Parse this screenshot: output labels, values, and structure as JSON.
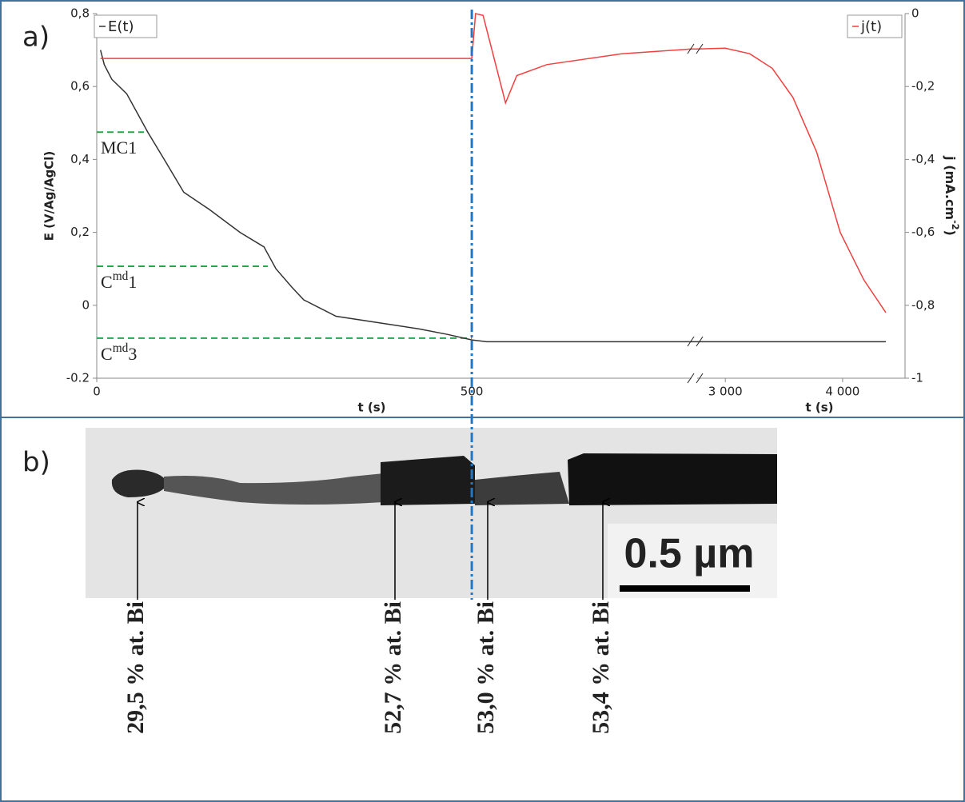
{
  "chart_data": {
    "type": "line",
    "xlabel": "t (s)",
    "ylabel": "E (V/Ag/AgCl)",
    "y2label": {
      "text": "j (mA.cm",
      "sup": "-2",
      "tail": ")"
    },
    "xlim": [
      0,
      4369
    ],
    "xbreak": [
      793,
      2760
    ],
    "xticks": [
      0,
      500,
      {
        "value": 3000,
        "label": "3 000"
      },
      {
        "value": 4000,
        "label": "4 000"
      }
    ],
    "ylim": [
      -0.2,
      0.8
    ],
    "yticks": [
      {
        "value": -0.2,
        "label": "-0.2"
      },
      0,
      {
        "value": 0.2,
        "label": "0,2"
      },
      {
        "value": 0.4,
        "label": "0,4"
      },
      {
        "value": 0.6,
        "label": "0,6"
      },
      {
        "value": 0.8,
        "label": "0,8"
      }
    ],
    "y2lim": [
      -1,
      0
    ],
    "y2ticks": [
      -1,
      {
        "value": -0.8,
        "label": "-0,8"
      },
      {
        "value": -0.6,
        "label": "-0,6"
      },
      {
        "value": -0.4,
        "label": "-0,4"
      },
      {
        "value": -0.2,
        "label": "-0,2"
      },
      0
    ],
    "series": [
      {
        "name": "E(t)",
        "color": "#333333",
        "x": [
          5,
          10,
          20,
          40,
          68,
          90,
          116,
          150,
          191,
          223,
          239,
          260,
          276,
          319,
          383,
          430,
          468,
          500,
          520,
          793,
          2760,
          3000,
          4000,
          4369
        ],
        "values": [
          0.7,
          0.66,
          0.62,
          0.58,
          0.475,
          0.4,
          0.31,
          0.263,
          0.2,
          0.16,
          0.1,
          0.05,
          0.015,
          -0.03,
          -0.05,
          -0.065,
          -0.08,
          -0.095,
          -0.1,
          -0.1,
          -0.1,
          -0.1,
          -0.1,
          -0.1
        ]
      },
      {
        "name": "j(t)",
        "color": "#f04040",
        "axis": "y2",
        "x": [
          5,
          500,
          505,
          515,
          545,
          560,
          600,
          700,
          793,
          2760,
          3000,
          3208,
          3400,
          3577,
          3779,
          3980,
          4181,
          4369
        ],
        "values": [
          -0.123,
          -0.123,
          0,
          -0.005,
          -0.245,
          -0.17,
          -0.14,
          -0.11,
          -0.097,
          -0.097,
          -0.095,
          -0.11,
          -0.15,
          -0.23,
          -0.38,
          -0.6,
          -0.73,
          -0.82
        ]
      }
    ],
    "levels": [
      {
        "label": {
          "text": "MC1"
        },
        "value": 0.475,
        "x_end": 63
      },
      {
        "label": {
          "text": "C",
          "sup": "md",
          "tail": "1"
        },
        "value": 0.107,
        "x_end": 228
      },
      {
        "label": {
          "text": "C",
          "sup": "md",
          "tail": "3"
        },
        "value": -0.09,
        "x_end": 500
      }
    ],
    "level_color": "#22a84a",
    "marker_x": 500,
    "marker_color": "#1f78c8"
  },
  "figure": {
    "panel_a": "a)",
    "panel_b": "b)",
    "scale_bar": "0.5 µm",
    "compositions": [
      "29,5 % at. Bi",
      "52,7 % at. Bi",
      "53,0 % at. Bi",
      "53,4 % at. Bi"
    ]
  }
}
